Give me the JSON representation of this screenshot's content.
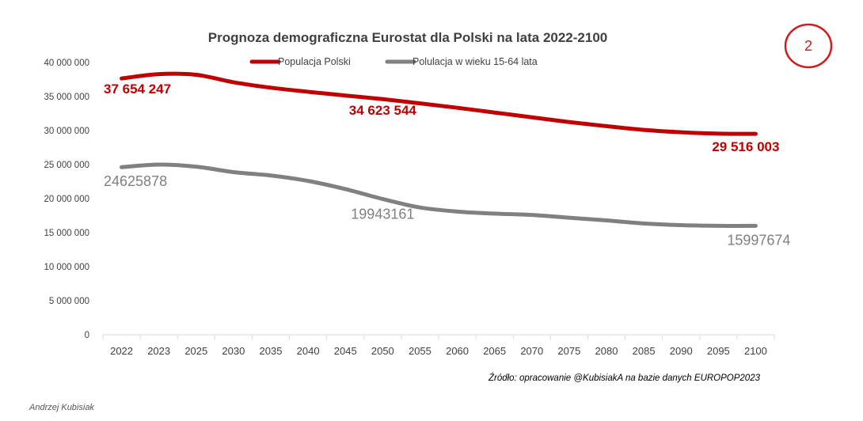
{
  "badge": {
    "label": "2",
    "color": "#d21b1b"
  },
  "source_note": "Źródło: opracowanie @KubisiakA na bazie danych EUROPOP2023",
  "author": "Andrzej Kubisiak",
  "chart_data": {
    "type": "line",
    "title": "Prognoza demograficzna Eurostat dla Polski na lata 2022-2100",
    "categories": [
      "2022",
      "2023",
      "2025",
      "2030",
      "2035",
      "2040",
      "2045",
      "2050",
      "2055",
      "2060",
      "2065",
      "2070",
      "2075",
      "2080",
      "2085",
      "2090",
      "2095",
      "2100"
    ],
    "ylim": [
      0,
      40000000
    ],
    "yticks": [
      0,
      5000000,
      10000000,
      15000000,
      20000000,
      25000000,
      30000000,
      35000000,
      40000000
    ],
    "ytick_labels": [
      "0",
      "5 000 000",
      "10 000 000",
      "15 000 000",
      "20 000 000",
      "25 000 000",
      "30 000 000",
      "35 000 000",
      "40 000 000"
    ],
    "legend_position": "top",
    "grid": false,
    "series": [
      {
        "name": "Populacja Polski",
        "color": "#c00000",
        "values": [
          37654247,
          38300000,
          38200000,
          37100000,
          36300000,
          35700000,
          35150000,
          34623544,
          34000000,
          33350000,
          32650000,
          31950000,
          31250000,
          30650000,
          30100000,
          29750000,
          29550000,
          29516003
        ],
        "data_labels": [
          {
            "index": 0,
            "text": "37 654 247"
          },
          {
            "index": 7,
            "text": "34 623 544"
          },
          {
            "index": 17,
            "text": "29 516 003"
          }
        ]
      },
      {
        "name": "Polulacja w wieku 15-64 lata",
        "color": "#808080",
        "values": [
          24625878,
          25000000,
          24700000,
          23900000,
          23400000,
          22600000,
          21400000,
          19943161,
          18700000,
          18100000,
          17800000,
          17600000,
          17200000,
          16800000,
          16350000,
          16100000,
          16000000,
          15997674
        ],
        "data_labels": [
          {
            "index": 0,
            "text": "24625878"
          },
          {
            "index": 7,
            "text": "19943161"
          },
          {
            "index": 17,
            "text": "15997674"
          }
        ]
      }
    ]
  }
}
